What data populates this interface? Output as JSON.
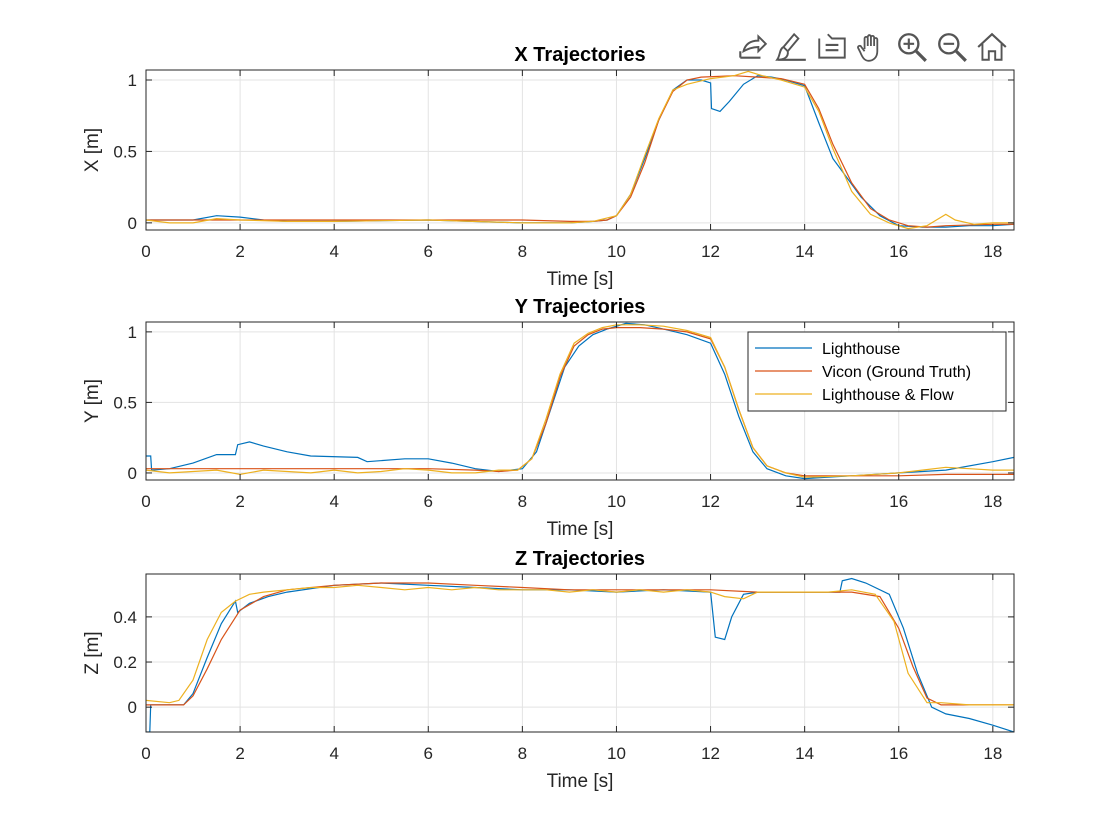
{
  "toolbar": {
    "tools": [
      {
        "icon": "export-icon"
      },
      {
        "icon": "brush-icon"
      },
      {
        "icon": "data-tips-icon"
      },
      {
        "icon": "pan-hand-icon"
      },
      {
        "icon": "zoom-in-icon"
      },
      {
        "icon": "zoom-out-icon"
      },
      {
        "icon": "home-icon"
      }
    ]
  },
  "colors": {
    "lighthouse": "#0072BD",
    "vicon": "#D95319",
    "flow": "#EDB120",
    "grid": "#e3e3e3",
    "axis": "#262626"
  },
  "legend": {
    "entries": [
      "Lighthouse",
      "Vicon (Ground Truth)",
      "Lighthouse & Flow"
    ],
    "placement": "top-right (Y plot)"
  },
  "chart_data": [
    {
      "type": "line",
      "title": "X Trajectories",
      "xlabel": "Time [s]",
      "ylabel": "X [m]",
      "xlim": [
        0,
        18.45
      ],
      "ylim": [
        -0.05,
        1.07
      ],
      "xticks": [
        "0",
        "2",
        "4",
        "6",
        "8",
        "10",
        "12",
        "14",
        "16",
        "18"
      ],
      "yticks": [
        "0",
        "0.5",
        "1"
      ],
      "grid": true,
      "series": [
        {
          "name": "Lighthouse",
          "x": [
            0,
            0.5,
            1,
            1.5,
            2,
            2.5,
            3,
            4,
            6,
            8,
            9,
            9.5,
            9.8,
            10,
            10.3,
            10.6,
            10.9,
            11.2,
            11.5,
            11.8,
            12.0,
            12.02,
            12.2,
            12.4,
            12.7,
            13.0,
            13.3,
            13.6,
            14.0,
            14.3,
            14.6,
            14.8,
            15.2,
            15.6,
            16.0,
            16.5,
            17,
            17.5,
            18,
            18.45
          ],
          "y": [
            0.02,
            0.02,
            0.02,
            0.05,
            0.04,
            0.02,
            0.01,
            0.01,
            0.02,
            0.0,
            0.0,
            0.01,
            0.02,
            0.05,
            0.2,
            0.45,
            0.72,
            0.93,
            1.0,
            1.0,
            0.98,
            0.8,
            0.78,
            0.85,
            0.97,
            1.03,
            1.02,
            1.0,
            0.96,
            0.7,
            0.45,
            0.36,
            0.18,
            0.05,
            -0.02,
            -0.03,
            -0.03,
            -0.02,
            -0.02,
            -0.01
          ]
        },
        {
          "name": "Vicon (Ground Truth)",
          "x": [
            0,
            2,
            4,
            6,
            8,
            9,
            9.5,
            9.8,
            10,
            10.3,
            10.6,
            10.9,
            11.2,
            11.5,
            11.8,
            12.5,
            13.0,
            13.5,
            14.0,
            14.3,
            14.6,
            15.0,
            15.4,
            15.8,
            16.2,
            16.6,
            17,
            18,
            18.45
          ],
          "y": [
            0.02,
            0.02,
            0.02,
            0.02,
            0.02,
            0.01,
            0.01,
            0.02,
            0.05,
            0.18,
            0.42,
            0.72,
            0.92,
            1.0,
            1.02,
            1.03,
            1.02,
            1.01,
            0.97,
            0.8,
            0.55,
            0.28,
            0.1,
            0.02,
            -0.02,
            -0.03,
            -0.02,
            -0.01,
            -0.01
          ]
        },
        {
          "name": "Lighthouse & Flow",
          "x": [
            0,
            0.5,
            1,
            1.5,
            2,
            3,
            4,
            6,
            8,
            9,
            9.5,
            10,
            10.3,
            10.6,
            10.9,
            11.2,
            11.5,
            12.0,
            12.5,
            12.8,
            13.1,
            13.5,
            14.0,
            14.3,
            14.6,
            15.0,
            15.4,
            15.8,
            16.2,
            16.6,
            16.8,
            17.0,
            17.2,
            17.6,
            18,
            18.45
          ],
          "y": [
            0.02,
            0.0,
            0.0,
            0.03,
            0.02,
            0.01,
            0.01,
            0.02,
            0.0,
            0.0,
            0.01,
            0.05,
            0.2,
            0.47,
            0.73,
            0.93,
            0.97,
            1.01,
            1.03,
            1.06,
            1.03,
            1.0,
            0.95,
            0.78,
            0.52,
            0.22,
            0.06,
            0.0,
            -0.04,
            -0.02,
            0.02,
            0.06,
            0.02,
            -0.01,
            0.0,
            0.0
          ]
        }
      ]
    },
    {
      "type": "line",
      "title": "Y Trajectories",
      "xlabel": "Time [s]",
      "ylabel": "Y [m]",
      "xlim": [
        0,
        18.45
      ],
      "ylim": [
        -0.05,
        1.07
      ],
      "xticks": [
        "0",
        "2",
        "4",
        "6",
        "8",
        "10",
        "12",
        "14",
        "16",
        "18"
      ],
      "yticks": [
        "0",
        "0.5",
        "1"
      ],
      "grid": true,
      "series": [
        {
          "name": "Lighthouse",
          "x": [
            0,
            0.1,
            0.12,
            0.5,
            1,
            1.5,
            1.9,
            1.95,
            2.2,
            2.5,
            3,
            3.5,
            4.5,
            4.7,
            5.5,
            6.0,
            6.5,
            7.0,
            7.5,
            8,
            8.3,
            8.6,
            8.9,
            9.2,
            9.5,
            9.8,
            10.2,
            10.6,
            11,
            11.5,
            12.0,
            12.3,
            12.6,
            12.9,
            13.2,
            13.6,
            14.0,
            14.5,
            15,
            16,
            17,
            18,
            18.45
          ],
          "y": [
            0.12,
            0.12,
            0.02,
            0.03,
            0.07,
            0.13,
            0.13,
            0.2,
            0.22,
            0.19,
            0.15,
            0.12,
            0.11,
            0.08,
            0.1,
            0.1,
            0.07,
            0.03,
            0.01,
            0.03,
            0.15,
            0.45,
            0.75,
            0.9,
            0.98,
            1.02,
            1.06,
            1.05,
            1.02,
            0.98,
            0.92,
            0.7,
            0.4,
            0.15,
            0.03,
            -0.02,
            -0.04,
            -0.03,
            -0.02,
            0.0,
            0.02,
            0.08,
            0.11
          ]
        },
        {
          "name": "Vicon (Ground Truth)",
          "x": [
            0,
            1,
            2,
            3,
            4,
            5,
            6,
            7,
            7.5,
            7.9,
            8.2,
            8.5,
            8.8,
            9.1,
            9.4,
            9.7,
            10,
            10.5,
            11,
            11.5,
            12.0,
            12.3,
            12.6,
            12.9,
            13.2,
            13.6,
            14,
            15,
            16,
            17,
            18,
            18.45
          ],
          "y": [
            0.03,
            0.03,
            0.03,
            0.03,
            0.03,
            0.03,
            0.03,
            0.02,
            0.01,
            0.02,
            0.1,
            0.35,
            0.68,
            0.9,
            0.98,
            1.02,
            1.03,
            1.03,
            1.02,
            1.0,
            0.95,
            0.75,
            0.45,
            0.18,
            0.05,
            0.0,
            -0.02,
            -0.02,
            -0.02,
            -0.01,
            -0.01,
            -0.01
          ]
        },
        {
          "name": "Lighthouse & Flow",
          "x": [
            0,
            0.5,
            1,
            1.5,
            2,
            2.5,
            3,
            3.5,
            4,
            4.5,
            5,
            5.5,
            6,
            6.5,
            7,
            7.5,
            7.9,
            8.2,
            8.5,
            8.8,
            9.1,
            9.4,
            9.7,
            10,
            10.5,
            11,
            11.5,
            12.0,
            12.3,
            12.6,
            12.9,
            13.2,
            13.6,
            14,
            15,
            16,
            16.5,
            17,
            17.5,
            18,
            18.45
          ],
          "y": [
            0.02,
            0.0,
            0.01,
            0.02,
            -0.01,
            0.02,
            0.01,
            0.0,
            0.02,
            0.0,
            0.01,
            0.03,
            0.02,
            0.0,
            0.0,
            0.02,
            0.02,
            0.1,
            0.38,
            0.7,
            0.92,
            0.99,
            1.03,
            1.05,
            1.05,
            1.04,
            1.01,
            0.96,
            0.75,
            0.45,
            0.18,
            0.05,
            0.0,
            -0.03,
            -0.02,
            0.0,
            0.02,
            0.04,
            0.03,
            0.02,
            0.02
          ]
        }
      ]
    },
    {
      "type": "line",
      "title": "Z Trajectories",
      "xlabel": "Time [s]",
      "ylabel": "Z [m]",
      "xlim": [
        0,
        18.45
      ],
      "ylim": [
        -0.11,
        0.59
      ],
      "xticks": [
        "0",
        "2",
        "4",
        "6",
        "8",
        "10",
        "12",
        "14",
        "16",
        "18"
      ],
      "yticks": [
        "0",
        "0.2",
        "0.4"
      ],
      "grid": true,
      "series": [
        {
          "name": "Lighthouse",
          "x": [
            0,
            0.08,
            0.1,
            0.5,
            0.8,
            1.0,
            1.3,
            1.6,
            1.9,
            1.95,
            2.2,
            2.6,
            3,
            4,
            5,
            6,
            7,
            8,
            9,
            10,
            11,
            12.0,
            12.1,
            12.3,
            12.45,
            12.7,
            13,
            14,
            14.75,
            14.8,
            15.0,
            15.3,
            15.8,
            16.1,
            16.4,
            16.7,
            17,
            17.5,
            18,
            18.45
          ],
          "y": [
            -0.11,
            -0.11,
            0.01,
            0.01,
            0.01,
            0.06,
            0.22,
            0.37,
            0.47,
            0.42,
            0.46,
            0.49,
            0.51,
            0.54,
            0.55,
            0.54,
            0.53,
            0.52,
            0.52,
            0.51,
            0.52,
            0.51,
            0.31,
            0.3,
            0.4,
            0.5,
            0.51,
            0.51,
            0.51,
            0.56,
            0.57,
            0.55,
            0.5,
            0.35,
            0.15,
            0.0,
            -0.03,
            -0.05,
            -0.08,
            -0.11
          ]
        },
        {
          "name": "Vicon (Ground Truth)",
          "x": [
            0,
            0.5,
            0.8,
            1.0,
            1.3,
            1.6,
            2.0,
            2.5,
            3,
            4,
            5,
            6,
            7,
            8,
            9,
            10,
            11,
            12,
            13,
            14,
            15,
            15.6,
            16.0,
            16.3,
            16.6,
            16.9,
            17.5,
            18,
            18.45
          ],
          "y": [
            0.01,
            0.01,
            0.01,
            0.05,
            0.17,
            0.3,
            0.43,
            0.49,
            0.52,
            0.54,
            0.55,
            0.55,
            0.54,
            0.53,
            0.52,
            0.52,
            0.52,
            0.52,
            0.51,
            0.51,
            0.51,
            0.49,
            0.35,
            0.18,
            0.04,
            0.01,
            0.01,
            0.01,
            0.01
          ]
        },
        {
          "name": "Lighthouse & Flow",
          "x": [
            0,
            0.5,
            0.7,
            1.0,
            1.3,
            1.6,
            1.9,
            2.2,
            2.5,
            3,
            3.5,
            4,
            4.5,
            5,
            5.5,
            6,
            6.5,
            7,
            7.5,
            8,
            8.5,
            9,
            9.5,
            10,
            10.5,
            11,
            11.5,
            12,
            12.3,
            12.7,
            13,
            13.5,
            14,
            14.5,
            15,
            15.5,
            15.9,
            16.2,
            16.6,
            16.9,
            17.5,
            18,
            18.45
          ],
          "y": [
            0.03,
            0.02,
            0.03,
            0.12,
            0.3,
            0.42,
            0.47,
            0.5,
            0.51,
            0.52,
            0.53,
            0.53,
            0.54,
            0.53,
            0.52,
            0.53,
            0.52,
            0.53,
            0.52,
            0.52,
            0.52,
            0.51,
            0.52,
            0.51,
            0.52,
            0.51,
            0.52,
            0.51,
            0.49,
            0.48,
            0.51,
            0.51,
            0.51,
            0.51,
            0.52,
            0.5,
            0.38,
            0.15,
            0.02,
            0.02,
            0.01,
            0.01,
            0.01
          ]
        }
      ]
    }
  ]
}
